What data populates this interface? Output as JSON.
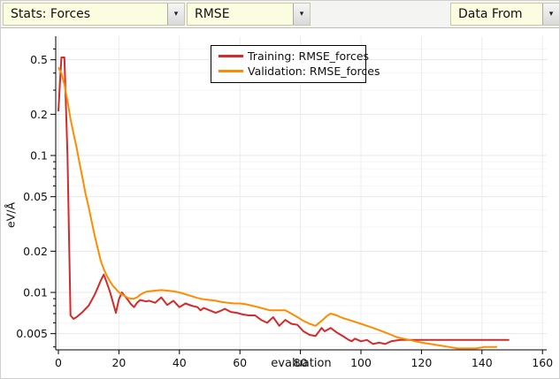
{
  "toolbar": {
    "arrow_glyph": "▾",
    "dropdowns": [
      {
        "label": "Stats: Forces"
      },
      {
        "label": "RMSE"
      },
      {
        "label": "Data From"
      }
    ]
  },
  "chart_data": {
    "type": "line",
    "title": "",
    "xlabel": "evaluation",
    "ylabel": "eV/Å",
    "grid": true,
    "x_axis": {
      "min": 0,
      "max": 160,
      "ticks": [
        0,
        20,
        40,
        60,
        80,
        100,
        120,
        140,
        160
      ]
    },
    "y_axis": {
      "scale": "log",
      "range": [
        0.0038,
        0.65
      ],
      "ticks": [
        "0.5",
        "0.2",
        "0.1",
        "0.05",
        "0.02",
        "0.01",
        "0.005"
      ],
      "minor_ticks": [
        0.6,
        0.4,
        0.3,
        0.09,
        0.08,
        0.07,
        0.06,
        0.04,
        0.03,
        0.009,
        0.008,
        0.007,
        0.006,
        0.004
      ]
    },
    "legend": {
      "position": "top-center",
      "entries": [
        {
          "label": "Training: RMSE_forces",
          "color": "#d22b2b"
        },
        {
          "label": "Validation: RMSE_forces",
          "color": "#ff8c00"
        }
      ]
    },
    "series": [
      {
        "name": "Training: RMSE_forces",
        "color": "#d22b2b",
        "points": [
          [
            0,
            0.21
          ],
          [
            1,
            0.52
          ],
          [
            2,
            0.52
          ],
          [
            3,
            0.1
          ],
          [
            4,
            0.0068
          ],
          [
            5,
            0.0064
          ],
          [
            6,
            0.0066
          ],
          [
            8,
            0.0072
          ],
          [
            10,
            0.008
          ],
          [
            12,
            0.0096
          ],
          [
            14,
            0.0122
          ],
          [
            15,
            0.0135
          ],
          [
            16,
            0.0118
          ],
          [
            17,
            0.0102
          ],
          [
            18,
            0.0085
          ],
          [
            19,
            0.0071
          ],
          [
            20,
            0.0089
          ],
          [
            21,
            0.01
          ],
          [
            22,
            0.0094
          ],
          [
            23,
            0.0088
          ],
          [
            24,
            0.0082
          ],
          [
            25,
            0.0078
          ],
          [
            26,
            0.0084
          ],
          [
            27,
            0.0088
          ],
          [
            28,
            0.0087
          ],
          [
            29,
            0.0086
          ],
          [
            30,
            0.0087
          ],
          [
            32,
            0.0084
          ],
          [
            34,
            0.0092
          ],
          [
            36,
            0.0081
          ],
          [
            38,
            0.0087
          ],
          [
            40,
            0.0078
          ],
          [
            42,
            0.0083
          ],
          [
            44,
            0.008
          ],
          [
            46,
            0.0078
          ],
          [
            47,
            0.0074
          ],
          [
            48,
            0.0077
          ],
          [
            50,
            0.0074
          ],
          [
            52,
            0.0071
          ],
          [
            54,
            0.0074
          ],
          [
            55,
            0.0076
          ],
          [
            57,
            0.0072
          ],
          [
            59,
            0.0071
          ],
          [
            61,
            0.0069
          ],
          [
            63,
            0.0068
          ],
          [
            65,
            0.0068
          ],
          [
            67,
            0.0063
          ],
          [
            69,
            0.006
          ],
          [
            70,
            0.0063
          ],
          [
            71,
            0.0066
          ],
          [
            73,
            0.0057
          ],
          [
            75,
            0.0063
          ],
          [
            77,
            0.0059
          ],
          [
            79,
            0.0058
          ],
          [
            81,
            0.0052
          ],
          [
            83,
            0.0049
          ],
          [
            85,
            0.0048
          ],
          [
            87,
            0.0055
          ],
          [
            88,
            0.0052
          ],
          [
            90,
            0.0055
          ],
          [
            92,
            0.0051
          ],
          [
            94,
            0.0048
          ],
          [
            96,
            0.0045
          ],
          [
            97,
            0.0044
          ],
          [
            98,
            0.0046
          ],
          [
            100,
            0.0044
          ],
          [
            102,
            0.0045
          ],
          [
            104,
            0.0042
          ],
          [
            106,
            0.0043
          ],
          [
            108,
            0.0042
          ],
          [
            110,
            0.0044
          ],
          [
            113,
            0.0045
          ],
          [
            116,
            0.0045
          ],
          [
            120,
            0.0045
          ],
          [
            125,
            0.0045
          ],
          [
            130,
            0.0045
          ],
          [
            135,
            0.0045
          ],
          [
            140,
            0.0045
          ],
          [
            145,
            0.0045
          ],
          [
            149,
            0.0045
          ]
        ]
      },
      {
        "name": "Validation: RMSE_forces",
        "color": "#ff8c00",
        "points": [
          [
            0,
            0.44
          ],
          [
            1,
            0.4
          ],
          [
            2,
            0.33
          ],
          [
            3,
            0.25
          ],
          [
            4,
            0.185
          ],
          [
            5,
            0.145
          ],
          [
            6,
            0.115
          ],
          [
            7,
            0.088
          ],
          [
            8,
            0.068
          ],
          [
            9,
            0.052
          ],
          [
            10,
            0.042
          ],
          [
            11,
            0.033
          ],
          [
            12,
            0.026
          ],
          [
            13,
            0.021
          ],
          [
            14,
            0.017
          ],
          [
            15,
            0.0148
          ],
          [
            16,
            0.0133
          ],
          [
            17,
            0.0121
          ],
          [
            18,
            0.0112
          ],
          [
            19,
            0.0106
          ],
          [
            20,
            0.01
          ],
          [
            21,
            0.0097
          ],
          [
            22,
            0.0094
          ],
          [
            23,
            0.0091
          ],
          [
            24,
            0.009
          ],
          [
            25,
            0.009
          ],
          [
            26,
            0.0092
          ],
          [
            27,
            0.0096
          ],
          [
            28,
            0.0099
          ],
          [
            29,
            0.0101
          ],
          [
            30,
            0.0102
          ],
          [
            32,
            0.0103
          ],
          [
            34,
            0.0104
          ],
          [
            36,
            0.0103
          ],
          [
            38,
            0.0102
          ],
          [
            40,
            0.01
          ],
          [
            42,
            0.0097
          ],
          [
            44,
            0.0094
          ],
          [
            46,
            0.0091
          ],
          [
            48,
            0.0089
          ],
          [
            50,
            0.0088
          ],
          [
            52,
            0.0087
          ],
          [
            54,
            0.0085
          ],
          [
            56,
            0.0084
          ],
          [
            58,
            0.0083
          ],
          [
            60,
            0.0083
          ],
          [
            62,
            0.0082
          ],
          [
            64,
            0.008
          ],
          [
            66,
            0.0078
          ],
          [
            68,
            0.0076
          ],
          [
            70,
            0.0074
          ],
          [
            72,
            0.0074
          ],
          [
            74,
            0.0074
          ],
          [
            75,
            0.0074
          ],
          [
            77,
            0.007
          ],
          [
            79,
            0.0066
          ],
          [
            81,
            0.0062
          ],
          [
            83,
            0.0059
          ],
          [
            85,
            0.0057
          ],
          [
            87,
            0.0062
          ],
          [
            89,
            0.0068
          ],
          [
            90,
            0.007
          ],
          [
            92,
            0.0068
          ],
          [
            94,
            0.0065
          ],
          [
            96,
            0.0063
          ],
          [
            98,
            0.0061
          ],
          [
            100,
            0.0059
          ],
          [
            102,
            0.0057
          ],
          [
            104,
            0.0055
          ],
          [
            106,
            0.0053
          ],
          [
            108,
            0.0051
          ],
          [
            110,
            0.0049
          ],
          [
            112,
            0.0047
          ],
          [
            114,
            0.0046
          ],
          [
            116,
            0.0045
          ],
          [
            118,
            0.0044
          ],
          [
            120,
            0.0043
          ],
          [
            123,
            0.0042
          ],
          [
            126,
            0.0041
          ],
          [
            129,
            0.004
          ],
          [
            132,
            0.0039
          ],
          [
            135,
            0.0039
          ],
          [
            138,
            0.0039
          ],
          [
            141,
            0.004
          ],
          [
            144,
            0.004
          ],
          [
            145,
            0.004
          ]
        ]
      }
    ]
  },
  "colors": {
    "toolbar_bg": "#f4f4f2",
    "dropdown_bg": "#fcfce0",
    "grid_major": "#e7e7e7",
    "grid_minor": "#f4f4f4",
    "axis": "#000000"
  }
}
